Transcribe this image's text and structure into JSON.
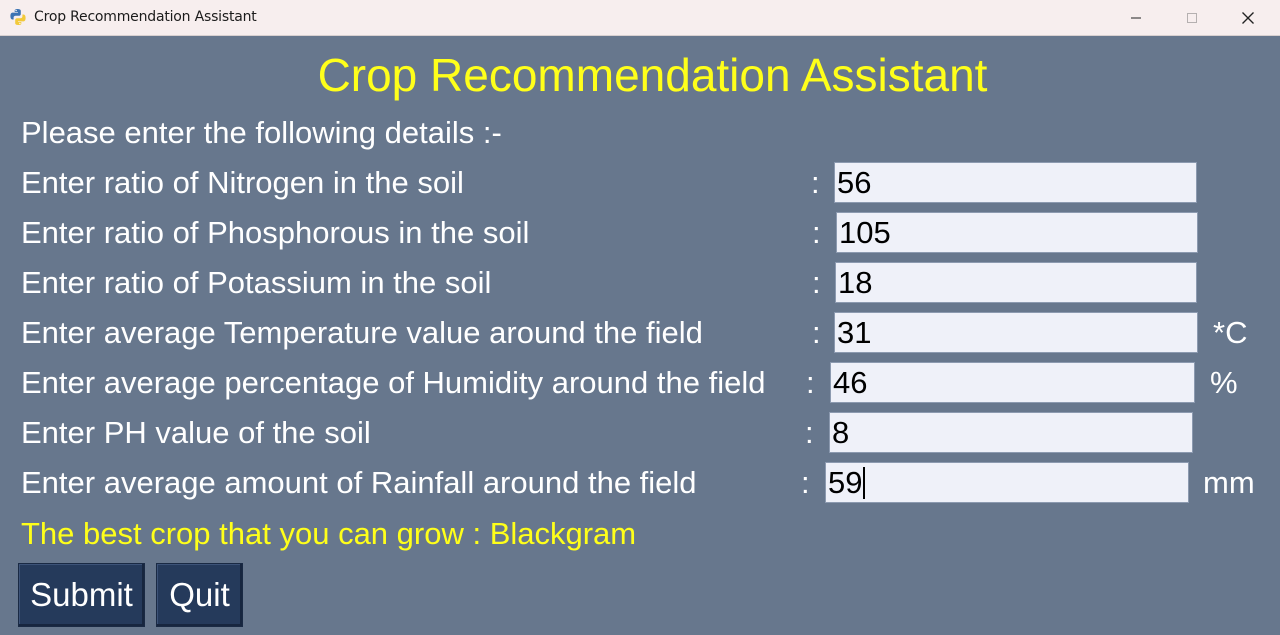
{
  "window": {
    "title": "Crop Recommendation Assistant",
    "minimize_glyph": "—",
    "maximize_glyph": "☐",
    "close_glyph": "✕"
  },
  "app": {
    "heading": "Crop Recommendation Assistant",
    "intro": "Please enter the following details :-",
    "colon": ":",
    "fields": [
      {
        "label": "Enter ratio of Nitrogen in the soil",
        "value": "56",
        "unit": ""
      },
      {
        "label": "Enter ratio of Phosphorous in the soil",
        "value": "105",
        "unit": ""
      },
      {
        "label": "Enter ratio of Potassium in the soil",
        "value": "18",
        "unit": ""
      },
      {
        "label": "Enter average Temperature value around the field",
        "value": "31",
        "unit": "*C"
      },
      {
        "label": "Enter average percentage of Humidity around the field",
        "value": "46",
        "unit": "%"
      },
      {
        "label": "Enter PH value of the soil",
        "value": "8",
        "unit": ""
      },
      {
        "label": "Enter average amount of Rainfall around the field",
        "value": "59",
        "unit": "mm"
      }
    ],
    "result": "The best crop that you can grow : Blackgram",
    "buttons": {
      "submit": "Submit",
      "quit": "Quit"
    }
  },
  "colors": {
    "background": "#67778d",
    "heading": "#ffff1a",
    "text": "#ffffff",
    "button": "#253a5b",
    "field": "#eff1f9"
  }
}
